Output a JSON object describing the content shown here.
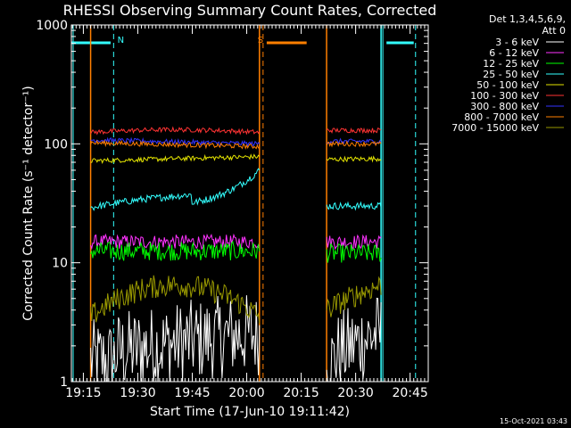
{
  "chart_data": {
    "type": "line",
    "title": "RHESSI Observing Summary Count Rates, Corrected",
    "xlabel": "Start Time (17-Jun-10 19:11:42)",
    "ylabel": "Corrected Count Rate (s⁻¹ detector⁻¹)",
    "x_start": "19:11:42",
    "x_end": "20:50:00",
    "xticks": [
      "19:15",
      "19:30",
      "19:45",
      "20:00",
      "20:15",
      "20:30",
      "20:45"
    ],
    "yscale": "log",
    "ylim": [
      1,
      1000
    ],
    "yticks": [
      "1",
      "10",
      "100",
      "1000"
    ],
    "footer_date": "15-Oct-2021 03:43",
    "legend": {
      "header1": "Det 1,3,4,5,6,9,",
      "header2": "Att 0"
    },
    "markers": [
      {
        "label": "N",
        "time": "19:23:20",
        "color": "#33ffff",
        "bar_start": "19:11:42",
        "bar_end": "19:22:30"
      },
      {
        "label": "S",
        "time": "20:04:30",
        "color": "#ff7f00",
        "bar_start": "20:05:30",
        "bar_end": "20:16:30"
      },
      {
        "label": "",
        "time": "20:46:30",
        "color": "#33ffff",
        "bar_start": "20:38:30",
        "bar_end": "20:46:00"
      }
    ],
    "intervals": [
      {
        "start": "19:17:00",
        "end": "20:03:30"
      },
      {
        "start": "20:22:00",
        "end": "20:37:00"
      }
    ],
    "series": [
      {
        "name": "3 - 6 keV",
        "color": "#ffffff",
        "level1": [
          1.6,
          2.6
        ],
        "level2": [
          1.5,
          2.6
        ],
        "noise": 0.35
      },
      {
        "name": "6 - 12 keV",
        "color": "#ff33ff",
        "level1": [
          15,
          15
        ],
        "level2": [
          15,
          15
        ],
        "noise": 0.06
      },
      {
        "name": "12 - 25 keV",
        "color": "#00ff00",
        "level1": [
          12.5,
          12.5
        ],
        "level2": [
          12,
          12
        ],
        "noise": 0.08
      },
      {
        "name": "25 - 50 keV",
        "color": "#33ffff",
        "level1": [
          29,
          60
        ],
        "level2": [
          30,
          30
        ],
        "noise": 0.03
      },
      {
        "name": "50 - 100 keV",
        "color": "#e5e500",
        "level1": [
          72,
          78
        ],
        "level2": [
          74,
          75
        ],
        "noise": 0.02
      },
      {
        "name": "100 - 300 keV",
        "color": "#ff3333",
        "level1": [
          125,
          130
        ],
        "level2": [
          130,
          130
        ],
        "noise": 0.02
      },
      {
        "name": "300 - 800 keV",
        "color": "#3333ff",
        "level1": [
          108,
          100
        ],
        "level2": [
          105,
          105
        ],
        "noise": 0.02
      },
      {
        "name": "800 - 7000 keV",
        "color": "#ff7f00",
        "level1": [
          102,
          95
        ],
        "level2": [
          100,
          100
        ],
        "noise": 0.02
      },
      {
        "name": "7000 - 15000 keV",
        "color": "#999900",
        "level1": [
          3.5,
          5
        ],
        "level2": [
          4.0,
          6.5
        ],
        "noise": 0.1
      }
    ]
  }
}
